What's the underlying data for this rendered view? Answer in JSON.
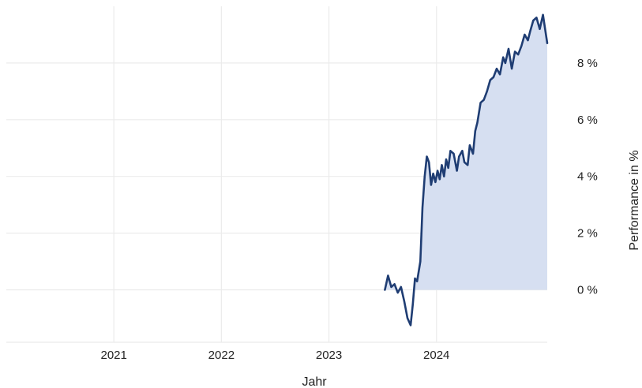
{
  "chart_data": {
    "type": "area",
    "xlabel": "Jahr",
    "ylabel": "Performance in %",
    "x_ticks": [
      {
        "label": "2021",
        "value": 2021.0
      },
      {
        "label": "2022",
        "value": 2022.0
      },
      {
        "label": "2023",
        "value": 2023.0
      },
      {
        "label": "2024",
        "value": 2024.0
      }
    ],
    "y_ticks": [
      {
        "label": "0 %",
        "value": 0
      },
      {
        "label": "2 %",
        "value": 2
      },
      {
        "label": "4 %",
        "value": 4
      },
      {
        "label": "6 %",
        "value": 6
      },
      {
        "label": "8 %",
        "value": 8
      }
    ],
    "xlim": [
      2020.0,
      2025.03
    ],
    "ylim": [
      -1.85,
      10.0
    ],
    "y_axis_position": "right",
    "grid": true,
    "colors": {
      "line": "#1f3d73",
      "fill": "#d6dff1",
      "grid": "#ebebeb"
    },
    "series": [
      {
        "x": [
          2023.52,
          2023.55,
          2023.58,
          2023.61,
          2023.64,
          2023.67,
          2023.7,
          2023.73,
          2023.76,
          2023.78,
          2023.8,
          2023.82,
          2023.85,
          2023.87,
          2023.89,
          2023.91,
          2023.93,
          2023.95,
          2023.97,
          2023.99,
          2024.01,
          2024.03,
          2024.05,
          2024.07,
          2024.09,
          2024.11,
          2024.13,
          2024.16,
          2024.19,
          2024.21,
          2024.24,
          2024.26,
          2024.29,
          2024.31,
          2024.34,
          2024.36,
          2024.38,
          2024.41,
          2024.44,
          2024.47,
          2024.5,
          2024.53,
          2024.56,
          2024.59,
          2024.62,
          2024.64,
          2024.67,
          2024.7,
          2024.73,
          2024.76,
          2024.79,
          2024.82,
          2024.85,
          2024.87,
          2024.9,
          2024.93,
          2024.96,
          2024.99,
          2025.01,
          2025.03
        ],
        "y": [
          0.0,
          0.5,
          0.1,
          0.2,
          -0.1,
          0.1,
          -0.4,
          -1.0,
          -1.25,
          -0.5,
          0.4,
          0.3,
          1.0,
          2.9,
          4.0,
          4.7,
          4.5,
          3.7,
          4.1,
          3.8,
          4.2,
          3.9,
          4.4,
          4.0,
          4.6,
          4.3,
          4.9,
          4.8,
          4.2,
          4.7,
          4.9,
          4.5,
          4.4,
          5.1,
          4.8,
          5.6,
          5.9,
          6.6,
          6.7,
          7.0,
          7.4,
          7.5,
          7.8,
          7.6,
          8.2,
          8.0,
          8.5,
          7.8,
          8.4,
          8.3,
          8.6,
          9.0,
          8.8,
          9.1,
          9.5,
          9.6,
          9.2,
          9.7,
          9.2,
          8.7
        ]
      }
    ]
  }
}
